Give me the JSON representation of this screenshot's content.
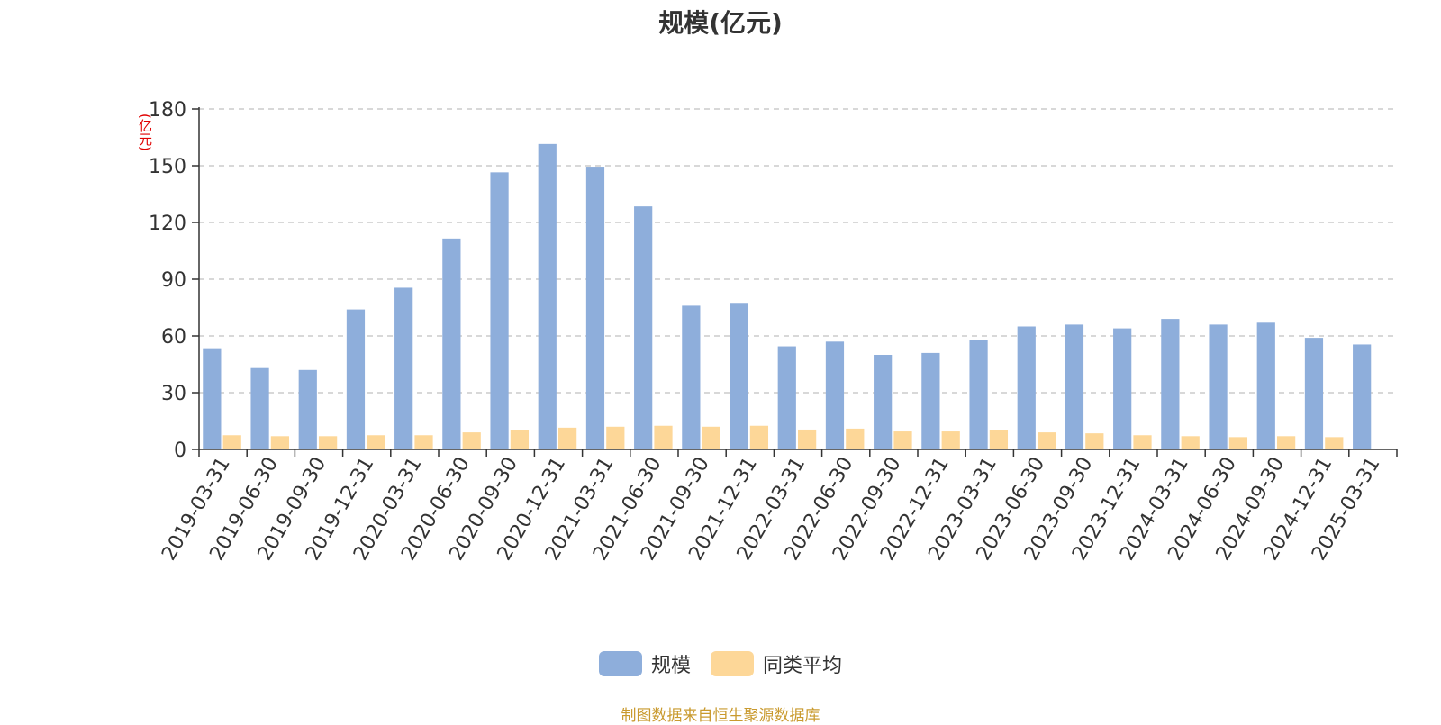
{
  "chart_data": {
    "type": "bar",
    "title": "规模(亿元)",
    "ylabel": "(亿元)",
    "xlabel": "",
    "ylim": [
      0,
      180
    ],
    "yticks": [
      0,
      30,
      60,
      90,
      120,
      150,
      180
    ],
    "grid": true,
    "legend_position": "bottom",
    "categories": [
      "2019-03-31",
      "2019-06-30",
      "2019-09-30",
      "2019-12-31",
      "2020-03-31",
      "2020-06-30",
      "2020-09-30",
      "2020-12-31",
      "2021-03-31",
      "2021-06-30",
      "2021-09-30",
      "2021-12-31",
      "2022-03-31",
      "2022-06-30",
      "2022-09-30",
      "2022-12-31",
      "2023-03-31",
      "2023-06-30",
      "2023-09-30",
      "2023-12-31",
      "2024-03-31",
      "2024-06-30",
      "2024-09-30",
      "2024-12-31",
      "2025-03-31"
    ],
    "series": [
      {
        "name": "规模",
        "color": "#8eaedb",
        "values": [
          53.5,
          43,
          42,
          74,
          85.5,
          111.5,
          146.5,
          161.5,
          149.5,
          128.5,
          76,
          77.5,
          54.5,
          57,
          50,
          51,
          58,
          65,
          66,
          64,
          69,
          66,
          67,
          59,
          55.5
        ]
      },
      {
        "name": "同类平均",
        "color": "#fdd798",
        "values": [
          7.5,
          7,
          7,
          7.5,
          7.5,
          9,
          10,
          11.5,
          12,
          12.5,
          12,
          12.5,
          10.5,
          11,
          9.5,
          9.5,
          10,
          9,
          8.5,
          7.5,
          7,
          6.5,
          7,
          6.5,
          null
        ]
      }
    ]
  },
  "source_text": "制图数据来自恒生聚源数据库"
}
